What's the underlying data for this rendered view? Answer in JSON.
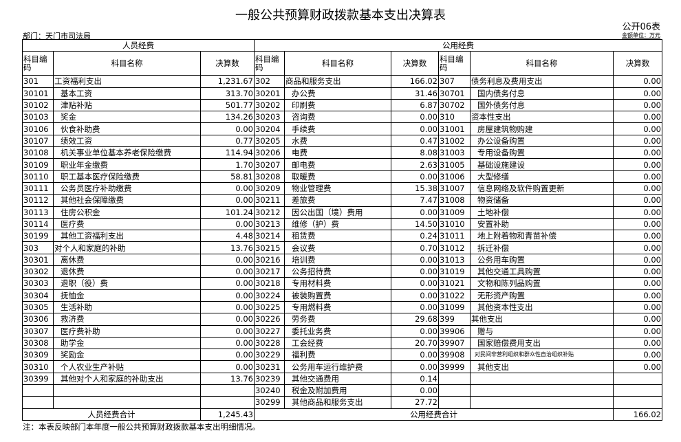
{
  "title": "一般公共预算财政拨款基本支出决算表",
  "form_no": "公开06表",
  "department": "部门：天门市司法局",
  "unit": "金额单位：万元",
  "groups": {
    "personnel": "人员经费",
    "public": "公用经费"
  },
  "headers": {
    "code": "科目编码",
    "name": "科目名称",
    "amount": "决算数"
  },
  "personnel_rows": [
    [
      "301",
      "工资福利支出",
      "1,231.67",
      0
    ],
    [
      "30101",
      "基本工资",
      "313.70",
      1
    ],
    [
      "30102",
      "津贴补贴",
      "501.77",
      1
    ],
    [
      "30103",
      "奖金",
      "134.26",
      1
    ],
    [
      "30106",
      "伙食补助费",
      "0.00",
      1
    ],
    [
      "30107",
      "绩效工资",
      "0.77",
      1
    ],
    [
      "30108",
      "机关事业单位基本养老保险缴费",
      "114.94",
      1
    ],
    [
      "30109",
      "职业年金缴费",
      "1.70",
      1
    ],
    [
      "30110",
      "职工基本医疗保险缴费",
      "58.81",
      1
    ],
    [
      "30111",
      "公务员医疗补助缴费",
      "0.00",
      1
    ],
    [
      "30112",
      "其他社会保障缴费",
      "0.00",
      1
    ],
    [
      "30113",
      "住房公积金",
      "101.24",
      1
    ],
    [
      "30114",
      "医疗费",
      "0.00",
      1
    ],
    [
      "30199",
      "其他工资福利支出",
      "4.48",
      1
    ],
    [
      "303",
      "对个人和家庭的补助",
      "13.76",
      0
    ],
    [
      "30301",
      "离休费",
      "0.00",
      1
    ],
    [
      "30302",
      "退休费",
      "0.00",
      1
    ],
    [
      "30303",
      "退职（役）费",
      "0.00",
      1
    ],
    [
      "30304",
      "抚恤金",
      "0.00",
      1
    ],
    [
      "30305",
      "生活补助",
      "0.00",
      1
    ],
    [
      "30306",
      "救济费",
      "0.00",
      1
    ],
    [
      "30307",
      "医疗费补助",
      "0.00",
      1
    ],
    [
      "30308",
      "助学金",
      "0.00",
      1
    ],
    [
      "30309",
      "奖励金",
      "0.00",
      1
    ],
    [
      "30310",
      "个人农业生产补贴",
      "0.00",
      1
    ],
    [
      "30399",
      "其他对个人和家庭的补助支出",
      "13.76",
      1
    ],
    [
      "",
      "",
      "",
      1
    ],
    [
      "",
      "",
      "",
      1
    ]
  ],
  "goods_rows": [
    [
      "302",
      "商品和服务支出",
      "166.02",
      0
    ],
    [
      "30201",
      "办公费",
      "31.46",
      1
    ],
    [
      "30202",
      "印刷费",
      "6.87",
      1
    ],
    [
      "30203",
      "咨询费",
      "0.00",
      1
    ],
    [
      "30204",
      "手续费",
      "0.00",
      1
    ],
    [
      "30205",
      "水费",
      "0.47",
      1
    ],
    [
      "30206",
      "电费",
      "8.08",
      1
    ],
    [
      "30207",
      "邮电费",
      "2.63",
      1
    ],
    [
      "30208",
      "取暖费",
      "0.00",
      1
    ],
    [
      "30209",
      "物业管理费",
      "15.38",
      1
    ],
    [
      "30211",
      "差旅费",
      "7.47",
      1
    ],
    [
      "30212",
      "因公出国（境）费用",
      "0.00",
      1
    ],
    [
      "30213",
      "维修（护）费",
      "14.50",
      1
    ],
    [
      "30214",
      "租赁费",
      "0.24",
      1
    ],
    [
      "30215",
      "会议费",
      "0.70",
      1
    ],
    [
      "30216",
      "培训费",
      "0.00",
      1
    ],
    [
      "30217",
      "公务招待费",
      "0.00",
      1
    ],
    [
      "30218",
      "专用材料费",
      "0.00",
      1
    ],
    [
      "30224",
      "被装购置费",
      "0.00",
      1
    ],
    [
      "30225",
      "专用燃料费",
      "0.00",
      1
    ],
    [
      "30226",
      "劳务费",
      "29.68",
      1
    ],
    [
      "30227",
      "委托业务费",
      "0.00",
      1
    ],
    [
      "30228",
      "工会经费",
      "20.70",
      1
    ],
    [
      "30229",
      "福利费",
      "0.00",
      1
    ],
    [
      "30231",
      "公务用车运行维护费",
      "0.00",
      1
    ],
    [
      "30239",
      "其他交通费用",
      "0.14",
      1
    ],
    [
      "30240",
      "税金及附加费用",
      "0.00",
      1
    ],
    [
      "30299",
      "其他商品和服务支出",
      "27.72",
      1
    ]
  ],
  "other_rows": [
    [
      "307",
      "债务利息及费用支出",
      "0.00",
      0
    ],
    [
      "30701",
      "国内债务付息",
      "0.00",
      1
    ],
    [
      "30702",
      "国外债务付息",
      "0.00",
      1
    ],
    [
      "310",
      "资本性支出",
      "0.00",
      0
    ],
    [
      "31001",
      "房屋建筑物购建",
      "0.00",
      1
    ],
    [
      "31002",
      "办公设备购置",
      "0.00",
      1
    ],
    [
      "31003",
      "专用设备购置",
      "0.00",
      1
    ],
    [
      "31005",
      "基础设施建设",
      "0.00",
      1
    ],
    [
      "31006",
      "大型修缮",
      "0.00",
      1
    ],
    [
      "31007",
      "信息网络及软件购置更新",
      "0.00",
      1
    ],
    [
      "31008",
      "物资储备",
      "0.00",
      1
    ],
    [
      "31009",
      "土地补偿",
      "0.00",
      1
    ],
    [
      "31010",
      "安置补助",
      "0.00",
      1
    ],
    [
      "31011",
      "地上附着物和青苗补偿",
      "0.00",
      1
    ],
    [
      "31012",
      "拆迁补偿",
      "0.00",
      1
    ],
    [
      "31013",
      "公务用车购置",
      "0.00",
      1
    ],
    [
      "31019",
      "其他交通工具购置",
      "0.00",
      1
    ],
    [
      "31021",
      "文物和陈列品购置",
      "0.00",
      1
    ],
    [
      "31022",
      "无形资产购置",
      "0.00",
      1
    ],
    [
      "31099",
      "其他资本性支出",
      "0.00",
      1
    ],
    [
      "399",
      "其他支出",
      "0.00",
      0
    ],
    [
      "39906",
      "赠与",
      "0.00",
      1
    ],
    [
      "39907",
      "国家赔偿费用支出",
      "0.00",
      1
    ],
    [
      "39908",
      "对民间非营利组织和群众性自治组织补贴",
      "0.00",
      2
    ],
    [
      "39999",
      "其他支出",
      "0.00",
      1
    ],
    [
      "",
      "",
      "",
      1
    ],
    [
      "",
      "",
      "",
      1
    ],
    [
      "",
      "",
      "",
      1
    ]
  ],
  "totals": {
    "personnel_label": "人员经费合计",
    "personnel_value": "1,245.43",
    "public_label": "公用经费合计",
    "public_value": "166.02"
  },
  "note": "注：本表反映部门本年度一般公共预算财政拨款基本支出明细情况。"
}
